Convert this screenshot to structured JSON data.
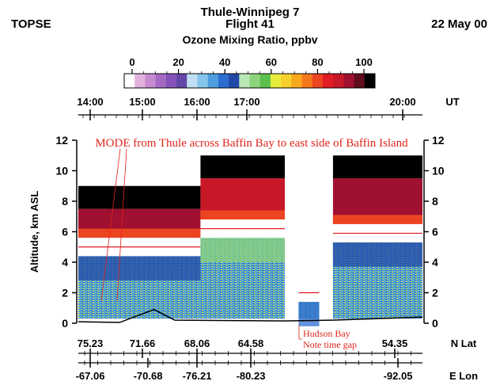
{
  "header": {
    "mission": "TOPSE",
    "flight_route": "Thule-Winnipeg 7",
    "flight_number": "Flight 41",
    "date": "22 May 00",
    "colorbar_label": "Ozone Mixing Ratio, ppbv"
  },
  "colorbar": {
    "ticks": [
      "0",
      "20",
      "40",
      "60",
      "80",
      "100"
    ],
    "colors": [
      "#ffffff",
      "#e2b2dc",
      "#c68ad0",
      "#a66ac4",
      "#8452b8",
      "#6446a8",
      "#bfe0f2",
      "#86c6ec",
      "#4f9ee0",
      "#2c6ed0",
      "#2048a8",
      "#b8e6b4",
      "#8cd47c",
      "#5cc04c",
      "#e6ec3c",
      "#f8d02c",
      "#f8a81c",
      "#f4781c",
      "#ec4420",
      "#e01c24",
      "#c81828",
      "#a01030",
      "#600c1c",
      "#000000"
    ]
  },
  "annotations": {
    "mode": "MODE from Thule across Baffin Bay to east side of Baffin Island",
    "hudson_bay": "Hudson Bay",
    "time_gap": "Note time gap"
  },
  "chart_data": {
    "type": "heatmap",
    "variable": "Ozone Mixing Ratio, ppbv",
    "color_scale_range": [
      0,
      100
    ],
    "ylabel": "Altitude, km ASL",
    "ylim": [
      0,
      12
    ],
    "yticks": [
      0,
      2,
      4,
      6,
      8,
      10,
      12
    ],
    "time_axis": {
      "label": "UT",
      "ticks": [
        "14:00",
        "15:00",
        "16:00",
        "17:00",
        "20:00"
      ]
    },
    "lat_axis": {
      "label": "N Lat",
      "ticks": [
        "75.23",
        "71.66",
        "68.06",
        "64.58",
        "54.35"
      ]
    },
    "lon_axis": {
      "label": "E Lon",
      "ticks": [
        "-67.06",
        "-70.68",
        "-76.21",
        "-80.23",
        "-92.05"
      ]
    },
    "segments": [
      {
        "x_start": 0.0,
        "x_end": 0.355,
        "aircraft_alt_km": 5.0,
        "tropopause_top_km": 9.0,
        "lower_o3_ppbv": 45,
        "upper_o3_ppbv": 90
      },
      {
        "x_start": 0.355,
        "x_end": 0.6,
        "aircraft_alt_km": 6.2,
        "tropopause_top_km": 11.0,
        "lower_o3_ppbv": 50,
        "upper_o3_ppbv": 85
      },
      {
        "x_start": 0.64,
        "x_end": 0.7,
        "aircraft_alt_km": 2.0,
        "tropopause_top_km": null,
        "lower_o3_ppbv": 40,
        "upper_o3_ppbv": null
      },
      {
        "x_start": 0.74,
        "x_end": 1.0,
        "aircraft_alt_km": 5.9,
        "tropopause_top_km": 11.0,
        "lower_o3_ppbv": 45,
        "upper_o3_ppbv": 90
      }
    ]
  }
}
